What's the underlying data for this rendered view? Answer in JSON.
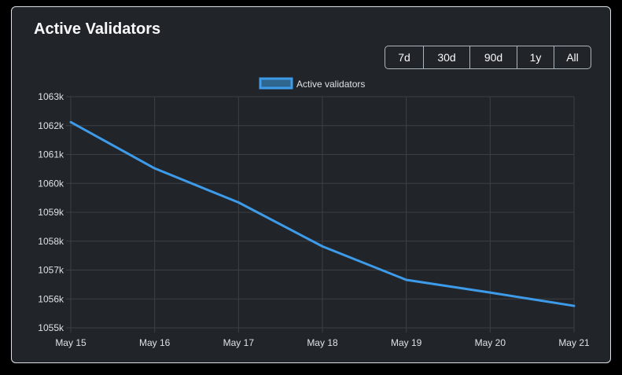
{
  "title": "Active Validators",
  "range_buttons": [
    "7d",
    "30d",
    "90d",
    "1y",
    "All"
  ],
  "colors": {
    "line": "#3d9be9",
    "legend_fill": "#2e6690",
    "grid": "#3c4045",
    "tick_text": "#dee2e6",
    "card_bg": "#212529"
  },
  "chart_data": {
    "type": "line",
    "legend": "top-center",
    "grid": true,
    "x": [
      "May 15",
      "May 16",
      "May 17",
      "May 18",
      "May 19",
      "May 20",
      "May 21"
    ],
    "series": [
      {
        "name": "Active validators",
        "values": [
          1062120,
          1060520,
          1059340,
          1057820,
          1056660,
          1056220,
          1055760
        ]
      }
    ],
    "y_ticks": [
      "1055k",
      "1056k",
      "1057k",
      "1058k",
      "1059k",
      "1060k",
      "1061k",
      "1062k",
      "1063k"
    ],
    "ylim": [
      1055000,
      1063000
    ]
  }
}
